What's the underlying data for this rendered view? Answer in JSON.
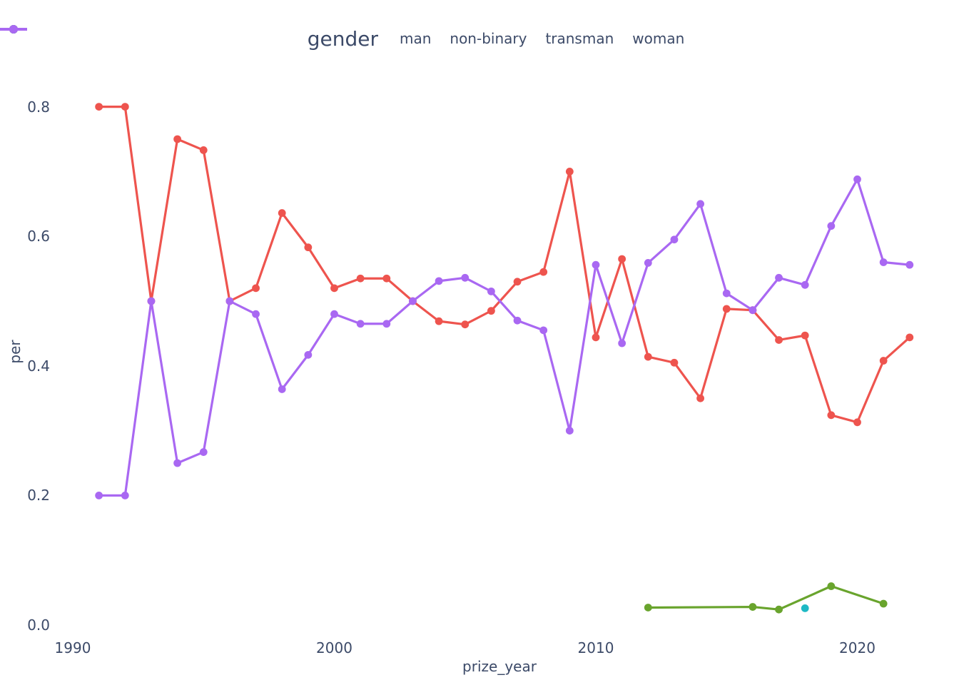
{
  "styles": {
    "background": "#ffffff",
    "text_color": "#3C4A68"
  },
  "chart_data": {
    "type": "line",
    "title": "",
    "legend_title": "gender",
    "legend_position": "top-center",
    "xlabel": "prize_year",
    "ylabel": "per",
    "grid": false,
    "xlim": [
      1989,
      2023.5
    ],
    "ylim": [
      0.0,
      0.85
    ],
    "x_ticks": [
      {
        "label": "1990",
        "value": 1990
      },
      {
        "label": "2000",
        "value": 2000
      },
      {
        "label": "2010",
        "value": 2010
      },
      {
        "label": "2020",
        "value": 2020
      }
    ],
    "y_ticks": [
      {
        "label": "0.0",
        "value": 0.0
      },
      {
        "label": "0.2",
        "value": 0.2
      },
      {
        "label": "0.4",
        "value": 0.4
      },
      {
        "label": "0.6",
        "value": 0.6
      },
      {
        "label": "0.8",
        "value": 0.8
      }
    ],
    "series": [
      {
        "name": "man",
        "color": "#EE544E",
        "points": [
          [
            1991,
            0.8
          ],
          [
            1992,
            0.8
          ],
          [
            1993,
            0.5
          ],
          [
            1994,
            0.75
          ],
          [
            1995,
            0.733
          ],
          [
            1996,
            0.5
          ],
          [
            1997,
            0.52
          ],
          [
            1998,
            0.636
          ],
          [
            1999,
            0.583
          ],
          [
            2000,
            0.52
          ],
          [
            2001,
            0.535
          ],
          [
            2002,
            0.535
          ],
          [
            2003,
            0.5
          ],
          [
            2004,
            0.469
          ],
          [
            2005,
            0.464
          ],
          [
            2006,
            0.485
          ],
          [
            2007,
            0.53
          ],
          [
            2008,
            0.545
          ],
          [
            2009,
            0.7
          ],
          [
            2010,
            0.444
          ],
          [
            2011,
            0.565
          ],
          [
            2012,
            0.414
          ],
          [
            2013,
            0.405
          ],
          [
            2014,
            0.35
          ],
          [
            2015,
            0.488
          ],
          [
            2016,
            0.486
          ],
          [
            2017,
            0.44
          ],
          [
            2018,
            0.447
          ],
          [
            2019,
            0.324
          ],
          [
            2020,
            0.313
          ],
          [
            2021,
            0.408
          ],
          [
            2022,
            0.444
          ]
        ]
      },
      {
        "name": "non-binary",
        "color": "#69A42D",
        "points": [
          [
            2012,
            0.027
          ],
          [
            2016,
            0.028
          ],
          [
            2017,
            0.024
          ],
          [
            2019,
            0.06
          ],
          [
            2021,
            0.033
          ]
        ]
      },
      {
        "name": "transman",
        "color": "#1EB9C4",
        "points": [
          [
            2018,
            0.026
          ]
        ]
      },
      {
        "name": "woman",
        "color": "#A968F2",
        "points": [
          [
            1991,
            0.2
          ],
          [
            1992,
            0.2
          ],
          [
            1993,
            0.5
          ],
          [
            1994,
            0.25
          ],
          [
            1995,
            0.267
          ],
          [
            1996,
            0.5
          ],
          [
            1997,
            0.48
          ],
          [
            1998,
            0.364
          ],
          [
            1999,
            0.417
          ],
          [
            2000,
            0.48
          ],
          [
            2001,
            0.465
          ],
          [
            2002,
            0.465
          ],
          [
            2003,
            0.5
          ],
          [
            2004,
            0.531
          ],
          [
            2005,
            0.536
          ],
          [
            2006,
            0.515
          ],
          [
            2007,
            0.47
          ],
          [
            2008,
            0.455
          ],
          [
            2009,
            0.3
          ],
          [
            2010,
            0.556
          ],
          [
            2011,
            0.435
          ],
          [
            2012,
            0.559
          ],
          [
            2013,
            0.595
          ],
          [
            2014,
            0.65
          ],
          [
            2015,
            0.512
          ],
          [
            2016,
            0.486
          ],
          [
            2017,
            0.536
          ],
          [
            2018,
            0.525
          ],
          [
            2019,
            0.616
          ],
          [
            2020,
            0.688
          ],
          [
            2021,
            0.56
          ],
          [
            2022,
            0.556
          ]
        ]
      }
    ]
  }
}
